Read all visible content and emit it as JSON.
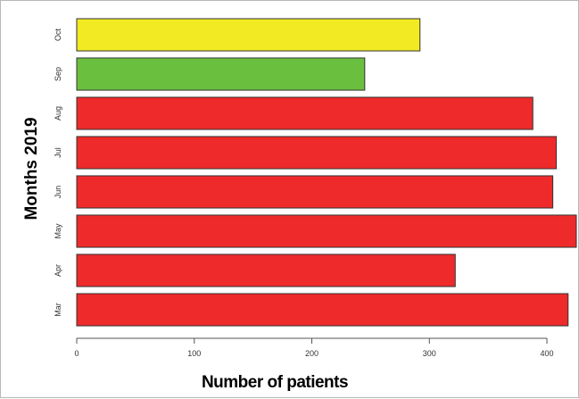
{
  "chart_data": {
    "type": "bar",
    "orientation": "horizontal",
    "xlabel": "Number of patients",
    "ylabel": "Months 2019",
    "xlim": [
      0,
      425
    ],
    "xticks": [
      0,
      100,
      200,
      300,
      400
    ],
    "grid": false,
    "legend": "none",
    "categories": [
      "Mar",
      "Apr",
      "May",
      "Jun",
      "Jul",
      "Aug",
      "Sep",
      "Oct"
    ],
    "values": [
      418,
      322,
      425,
      405,
      408,
      388,
      245,
      292
    ],
    "colors": [
      "#ee2a2a",
      "#ee2a2a",
      "#ee2a2a",
      "#ee2a2a",
      "#ee2a2a",
      "#ee2a2a",
      "#6abf3f",
      "#f2ea22"
    ],
    "edge_color": "#333333"
  }
}
